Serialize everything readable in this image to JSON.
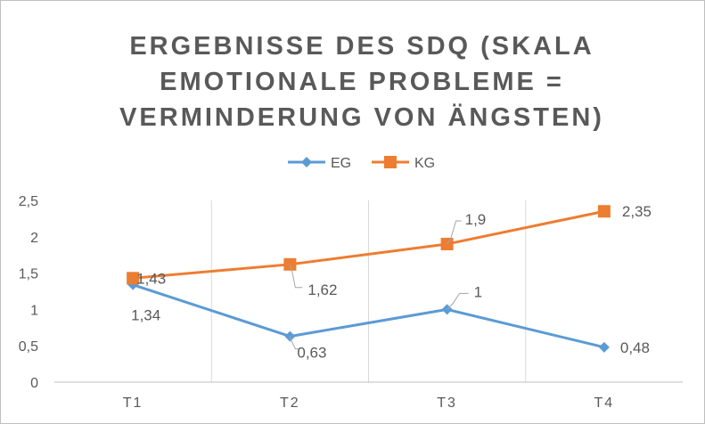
{
  "chart_data": {
    "type": "line",
    "title_lines": [
      "ERGEBNISSE DES SDQ (SKALA",
      "EMOTIONALE PROBLEME =",
      "VERMINDERUNG VON ÄNGSTEN)"
    ],
    "categories": [
      "T1",
      "T2",
      "T3",
      "T4"
    ],
    "ylim": [
      0,
      2.5
    ],
    "y_ticks": [
      "0",
      "0,5",
      "1",
      "1,5",
      "2",
      "2,5"
    ],
    "y_tick_values": [
      0,
      0.5,
      1,
      1.5,
      2,
      2.5
    ],
    "grid": "vertical",
    "legend_position": "top",
    "series": [
      {
        "name": "EG",
        "color": "#5b9bd5",
        "marker": "diamond",
        "values": [
          1.34,
          0.63,
          1,
          0.48
        ],
        "labels": [
          "1,34",
          "0,63",
          "1",
          "0,48"
        ]
      },
      {
        "name": "KG",
        "color": "#ed7d31",
        "marker": "square",
        "values": [
          1.43,
          1.62,
          1.9,
          2.35
        ],
        "labels": [
          "1,43",
          "1,62",
          "1,9",
          "2,35"
        ]
      }
    ]
  }
}
